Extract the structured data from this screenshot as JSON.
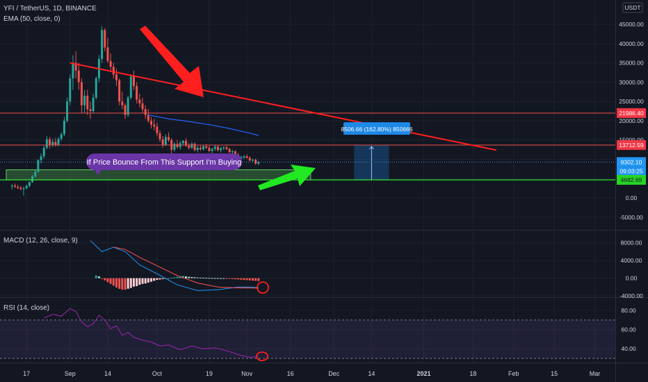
{
  "header": {
    "symbol_line": "YFI / TetherUS, 1D, BINANCE",
    "ema_line": "EMA (50, close, 0)",
    "currency": "USDT"
  },
  "price_axis": {
    "ticks": [
      "45000.00",
      "40000.00",
      "35000.00",
      "30000.00",
      "25000.00",
      "20000.00",
      "15000.00",
      "10000.00",
      "5000.00",
      "0.00",
      "-5000.00"
    ]
  },
  "price_tags": {
    "upper_resistance": "21986.40",
    "lower_resistance": "13712.59",
    "last_price": "9302.10",
    "countdown": "09:03:25",
    "support": "4682.69"
  },
  "annotations": {
    "bounce_note": "If Price Bounce  From This Support I'm Buying",
    "target_box": "8506.66 (162.80%) 850666"
  },
  "macd": {
    "legend": "MACD (12, 26, close, 9)",
    "ticks": [
      "8000.00",
      "4000.00",
      "0.00",
      "-4000.00"
    ]
  },
  "rsi": {
    "legend": "RSI (14, close)",
    "ticks": [
      "80.00",
      "60.00",
      "40.00"
    ]
  },
  "time_axis": {
    "labels": [
      "17",
      "Sep",
      "14",
      "Oct",
      "19",
      "Nov",
      "16",
      "Dec",
      "14",
      "2021",
      "18",
      "Feb",
      "15",
      "Mar"
    ]
  },
  "colors": {
    "background": "#131722",
    "up": "#26a69a",
    "down": "#ef5350",
    "support_zone": "#4caf50",
    "trendline": "#ff1f1f",
    "ema": "#2962ff",
    "rsi": "#9c27b0",
    "macd_line": "#2196f3",
    "signal_line": "#ff5252",
    "target_box": "#1e88e5"
  },
  "chart_data": [
    {
      "type": "candlestick",
      "title": "YFI / TetherUS, 1D, BINANCE",
      "ylim": [
        -8000,
        48000
      ],
      "x_range": [
        "2020-08-10",
        "2021-03-04"
      ],
      "ohlc": [
        {
          "d": "2020-08-12",
          "o": 3000,
          "h": 3600,
          "l": 2200,
          "c": 3200
        },
        {
          "d": "2020-08-13",
          "o": 3200,
          "h": 3700,
          "l": 2600,
          "c": 2900
        },
        {
          "d": "2020-08-14",
          "o": 2900,
          "h": 3400,
          "l": 2300,
          "c": 2600
        },
        {
          "d": "2020-08-15",
          "o": 2600,
          "h": 3100,
          "l": 2000,
          "c": 2300
        },
        {
          "d": "2020-08-16",
          "o": 2300,
          "h": 3000,
          "l": 600,
          "c": 2500
        },
        {
          "d": "2020-08-17",
          "o": 2500,
          "h": 3500,
          "l": 2200,
          "c": 3100
        },
        {
          "d": "2020-08-18",
          "o": 3100,
          "h": 4300,
          "l": 2800,
          "c": 4100
        },
        {
          "d": "2020-08-19",
          "o": 4100,
          "h": 6000,
          "l": 3900,
          "c": 5600
        },
        {
          "d": "2020-08-20",
          "o": 5600,
          "h": 7200,
          "l": 5200,
          "c": 6800
        },
        {
          "d": "2020-08-21",
          "o": 6800,
          "h": 10000,
          "l": 6500,
          "c": 9800
        },
        {
          "d": "2020-08-22",
          "o": 9800,
          "h": 11500,
          "l": 9000,
          "c": 10800
        },
        {
          "d": "2020-08-23",
          "o": 10800,
          "h": 13500,
          "l": 10200,
          "c": 13000
        },
        {
          "d": "2020-08-24",
          "o": 13000,
          "h": 16000,
          "l": 12600,
          "c": 15200
        },
        {
          "d": "2020-08-25",
          "o": 15200,
          "h": 15800,
          "l": 12800,
          "c": 13800
        },
        {
          "d": "2020-08-26",
          "o": 13800,
          "h": 15400,
          "l": 13200,
          "c": 14500
        },
        {
          "d": "2020-08-27",
          "o": 14500,
          "h": 15600,
          "l": 13300,
          "c": 13800
        },
        {
          "d": "2020-08-28",
          "o": 13800,
          "h": 15800,
          "l": 13400,
          "c": 15300
        },
        {
          "d": "2020-08-29",
          "o": 15300,
          "h": 17000,
          "l": 14800,
          "c": 16500
        },
        {
          "d": "2020-08-30",
          "o": 16500,
          "h": 21000,
          "l": 16000,
          "c": 20000
        },
        {
          "d": "2020-08-31",
          "o": 20000,
          "h": 26000,
          "l": 19500,
          "c": 25000
        },
        {
          "d": "2020-09-01",
          "o": 25000,
          "h": 32000,
          "l": 24000,
          "c": 31000
        },
        {
          "d": "2020-09-02",
          "o": 31000,
          "h": 37000,
          "l": 28000,
          "c": 35000
        },
        {
          "d": "2020-09-03",
          "o": 35000,
          "h": 38000,
          "l": 31000,
          "c": 33000
        },
        {
          "d": "2020-09-04",
          "o": 33000,
          "h": 35000,
          "l": 28000,
          "c": 30000
        },
        {
          "d": "2020-09-05",
          "o": 30000,
          "h": 31000,
          "l": 22000,
          "c": 24000
        },
        {
          "d": "2020-09-06",
          "o": 24000,
          "h": 28000,
          "l": 22000,
          "c": 26500
        },
        {
          "d": "2020-09-07",
          "o": 26500,
          "h": 28000,
          "l": 21500,
          "c": 23000
        },
        {
          "d": "2020-09-08",
          "o": 23000,
          "h": 25000,
          "l": 20500,
          "c": 22500
        },
        {
          "d": "2020-09-09",
          "o": 22500,
          "h": 27000,
          "l": 22000,
          "c": 26000
        },
        {
          "d": "2020-09-10",
          "o": 26000,
          "h": 31500,
          "l": 25500,
          "c": 31000
        },
        {
          "d": "2020-09-11",
          "o": 31000,
          "h": 37000,
          "l": 30000,
          "c": 36000
        },
        {
          "d": "2020-09-12",
          "o": 36000,
          "h": 44500,
          "l": 35000,
          "c": 43500
        },
        {
          "d": "2020-09-13",
          "o": 43500,
          "h": 44000,
          "l": 38000,
          "c": 39000
        },
        {
          "d": "2020-09-14",
          "o": 39000,
          "h": 41500,
          "l": 35000,
          "c": 35500
        },
        {
          "d": "2020-09-15",
          "o": 35500,
          "h": 37500,
          "l": 33000,
          "c": 34000
        },
        {
          "d": "2020-09-16",
          "o": 34000,
          "h": 35000,
          "l": 31000,
          "c": 32000
        },
        {
          "d": "2020-09-17",
          "o": 32000,
          "h": 33500,
          "l": 29000,
          "c": 30500
        },
        {
          "d": "2020-09-18",
          "o": 30500,
          "h": 31000,
          "l": 24000,
          "c": 25000
        },
        {
          "d": "2020-09-19",
          "o": 25000,
          "h": 27500,
          "l": 23000,
          "c": 24000
        },
        {
          "d": "2020-09-20",
          "o": 24000,
          "h": 24500,
          "l": 20500,
          "c": 21500
        },
        {
          "d": "2020-09-21",
          "o": 21500,
          "h": 26500,
          "l": 21000,
          "c": 26000
        },
        {
          "d": "2020-09-22",
          "o": 26000,
          "h": 32000,
          "l": 25500,
          "c": 31500
        },
        {
          "d": "2020-09-23",
          "o": 31500,
          "h": 33000,
          "l": 28000,
          "c": 29000
        },
        {
          "d": "2020-09-24",
          "o": 29000,
          "h": 30000,
          "l": 24500,
          "c": 25500
        },
        {
          "d": "2020-09-25",
          "o": 25500,
          "h": 27000,
          "l": 23500,
          "c": 24500
        },
        {
          "d": "2020-09-26",
          "o": 24500,
          "h": 26000,
          "l": 22000,
          "c": 23000
        },
        {
          "d": "2020-09-27",
          "o": 23000,
          "h": 24000,
          "l": 20500,
          "c": 21500
        },
        {
          "d": "2020-09-28",
          "o": 21500,
          "h": 23000,
          "l": 19500,
          "c": 20000
        },
        {
          "d": "2020-09-29",
          "o": 20000,
          "h": 21000,
          "l": 18000,
          "c": 19000
        },
        {
          "d": "2020-09-30",
          "o": 19000,
          "h": 20500,
          "l": 17500,
          "c": 18500
        },
        {
          "d": "2020-10-01",
          "o": 18500,
          "h": 19500,
          "l": 16000,
          "c": 16800
        },
        {
          "d": "2020-10-02",
          "o": 16800,
          "h": 17500,
          "l": 14500,
          "c": 15200
        },
        {
          "d": "2020-10-03",
          "o": 15200,
          "h": 16000,
          "l": 13000,
          "c": 13800
        },
        {
          "d": "2020-10-04",
          "o": 13800,
          "h": 16500,
          "l": 13500,
          "c": 15800
        },
        {
          "d": "2020-10-05",
          "o": 15800,
          "h": 17000,
          "l": 14500,
          "c": 15000
        },
        {
          "d": "2020-10-06",
          "o": 15000,
          "h": 15500,
          "l": 11500,
          "c": 12500
        },
        {
          "d": "2020-10-07",
          "o": 12500,
          "h": 14500,
          "l": 12000,
          "c": 14000
        },
        {
          "d": "2020-10-08",
          "o": 14000,
          "h": 15000,
          "l": 12800,
          "c": 13200
        },
        {
          "d": "2020-10-09",
          "o": 13200,
          "h": 14800,
          "l": 12500,
          "c": 14200
        },
        {
          "d": "2020-10-10",
          "o": 14200,
          "h": 15000,
          "l": 13500,
          "c": 14800
        },
        {
          "d": "2020-10-11",
          "o": 14800,
          "h": 15500,
          "l": 13200,
          "c": 13500
        },
        {
          "d": "2020-10-12",
          "o": 13500,
          "h": 14200,
          "l": 12500,
          "c": 13000
        },
        {
          "d": "2020-10-13",
          "o": 13000,
          "h": 14500,
          "l": 12600,
          "c": 14000
        },
        {
          "d": "2020-10-14",
          "o": 14000,
          "h": 14400,
          "l": 12000,
          "c": 12400
        },
        {
          "d": "2020-10-15",
          "o": 12400,
          "h": 13500,
          "l": 11800,
          "c": 13000
        },
        {
          "d": "2020-10-16",
          "o": 13000,
          "h": 13600,
          "l": 12200,
          "c": 12600
        },
        {
          "d": "2020-10-17",
          "o": 12600,
          "h": 13800,
          "l": 12300,
          "c": 13400
        },
        {
          "d": "2020-10-18",
          "o": 13400,
          "h": 14000,
          "l": 12700,
          "c": 13000
        },
        {
          "d": "2020-10-19",
          "o": 13000,
          "h": 13500,
          "l": 11800,
          "c": 12200
        },
        {
          "d": "2020-10-20",
          "o": 12200,
          "h": 13000,
          "l": 11500,
          "c": 12700
        },
        {
          "d": "2020-10-21",
          "o": 12700,
          "h": 13800,
          "l": 12200,
          "c": 13300
        },
        {
          "d": "2020-10-22",
          "o": 13300,
          "h": 13700,
          "l": 12000,
          "c": 12400
        },
        {
          "d": "2020-10-23",
          "o": 12400,
          "h": 13200,
          "l": 11800,
          "c": 12900
        },
        {
          "d": "2020-10-24",
          "o": 12900,
          "h": 13400,
          "l": 12400,
          "c": 13100
        },
        {
          "d": "2020-10-25",
          "o": 13100,
          "h": 13600,
          "l": 12400,
          "c": 12700
        },
        {
          "d": "2020-10-26",
          "o": 12700,
          "h": 13000,
          "l": 11600,
          "c": 11900
        },
        {
          "d": "2020-10-27",
          "o": 11900,
          "h": 12500,
          "l": 11200,
          "c": 12100
        },
        {
          "d": "2020-10-28",
          "o": 12100,
          "h": 12400,
          "l": 10800,
          "c": 11200
        },
        {
          "d": "2020-10-29",
          "o": 11200,
          "h": 11600,
          "l": 9800,
          "c": 10200
        },
        {
          "d": "2020-10-30",
          "o": 10200,
          "h": 11000,
          "l": 9600,
          "c": 10500
        },
        {
          "d": "2020-10-31",
          "o": 10500,
          "h": 11200,
          "l": 10100,
          "c": 10800
        },
        {
          "d": "2020-11-01",
          "o": 10800,
          "h": 11300,
          "l": 10200,
          "c": 10400
        },
        {
          "d": "2020-11-02",
          "o": 10400,
          "h": 10800,
          "l": 9500,
          "c": 9700
        },
        {
          "d": "2020-11-03",
          "o": 9700,
          "h": 10200,
          "l": 9200,
          "c": 9900
        },
        {
          "d": "2020-11-04",
          "o": 9900,
          "h": 10200,
          "l": 8600,
          "c": 8900
        },
        {
          "d": "2020-11-05",
          "o": 8900,
          "h": 9600,
          "l": 8500,
          "c": 9302.1
        }
      ],
      "ema50": [
        {
          "d": "2020-09-28",
          "y": 21500
        },
        {
          "d": "2020-10-05",
          "y": 20500
        },
        {
          "d": "2020-10-12",
          "y": 19800
        },
        {
          "d": "2020-10-19",
          "y": 19000
        },
        {
          "d": "2020-10-26",
          "y": 18000
        },
        {
          "d": "2020-11-02",
          "y": 16800
        },
        {
          "d": "2020-11-05",
          "y": 16200
        }
      ],
      "horizontal_levels": [
        21986.4,
        13712.59,
        4682.69
      ],
      "support_zone": {
        "from": "2020-08-10",
        "to": "2020-11-23",
        "low": 4682.69,
        "high": 7300
      },
      "trendline": [
        {
          "d": "2020-09-01",
          "y": 35000
        },
        {
          "d": "2021-01-26",
          "y": 12400
        }
      ],
      "target": {
        "from": "2020-12-08",
        "to": "2020-12-20",
        "low": 4700,
        "high": 13712.59
      }
    },
    {
      "type": "line",
      "title": "MACD (12, 26, close, 9)",
      "ylim": [
        -4000,
        9000
      ],
      "series": [
        {
          "name": "MACD",
          "d": [
            "2020-09-08",
            "2020-09-12",
            "2020-09-16",
            "2020-09-20",
            "2020-09-25",
            "2020-10-01",
            "2020-10-08",
            "2020-10-15",
            "2020-10-22",
            "2020-10-29",
            "2020-11-02",
            "2020-11-05"
          ],
          "values": [
            8500,
            6000,
            7000,
            6000,
            3000,
            1000,
            -1500,
            -2800,
            -2600,
            -2000,
            -2000,
            -2100
          ]
        },
        {
          "name": "Signal",
          "d": [
            "2020-09-08",
            "2020-09-12",
            "2020-09-16",
            "2020-09-20",
            "2020-09-25",
            "2020-10-01",
            "2020-10-08",
            "2020-10-15",
            "2020-10-22",
            "2020-10-29",
            "2020-11-02",
            "2020-11-05"
          ],
          "values": [
            null,
            null,
            7000,
            6500,
            4700,
            2800,
            600,
            -1100,
            -2000,
            -2200,
            -2200,
            -2300
          ]
        }
      ],
      "histogram_from": "2020-09-10",
      "histogram": [
        600,
        400,
        -100,
        -500,
        -900,
        -1300,
        -1700,
        -2100,
        -2400,
        -2600,
        -2600,
        -2400,
        -2200,
        -1900,
        -1800,
        -1500,
        -1300,
        -1200,
        -1000,
        -800,
        -600,
        -400,
        -300,
        -200,
        -100,
        0,
        100,
        200,
        300,
        400,
        500,
        400,
        300,
        250,
        200,
        150,
        120,
        100,
        80,
        60,
        40,
        30,
        20,
        10,
        0,
        -100,
        -150,
        -200,
        -250,
        -300,
        -350,
        -400,
        -450,
        -500,
        -550,
        -600,
        -650
      ]
    },
    {
      "type": "line",
      "title": "RSI (14, close)",
      "ylim": [
        26,
        86
      ],
      "levels": [
        70,
        30
      ],
      "series": [
        {
          "name": "RSI",
          "d": [
            "2020-08-23",
            "2020-08-26",
            "2020-08-29",
            "2020-09-01",
            "2020-09-03",
            "2020-09-05",
            "2020-09-07",
            "2020-09-09",
            "2020-09-11",
            "2020-09-13",
            "2020-09-15",
            "2020-09-17",
            "2020-09-19",
            "2020-09-21",
            "2020-09-23",
            "2020-09-26",
            "2020-09-29",
            "2020-10-02",
            "2020-10-05",
            "2020-10-09",
            "2020-10-13",
            "2020-10-17",
            "2020-10-21",
            "2020-10-25",
            "2020-10-29",
            "2020-11-02",
            "2020-11-05"
          ],
          "values": [
            72,
            76,
            74,
            82,
            79,
            68,
            63,
            66,
            75,
            70,
            61,
            64,
            54,
            57,
            52,
            49,
            47,
            43,
            44,
            39,
            43,
            40,
            41,
            38,
            34,
            31,
            32
          ]
        }
      ]
    }
  ]
}
